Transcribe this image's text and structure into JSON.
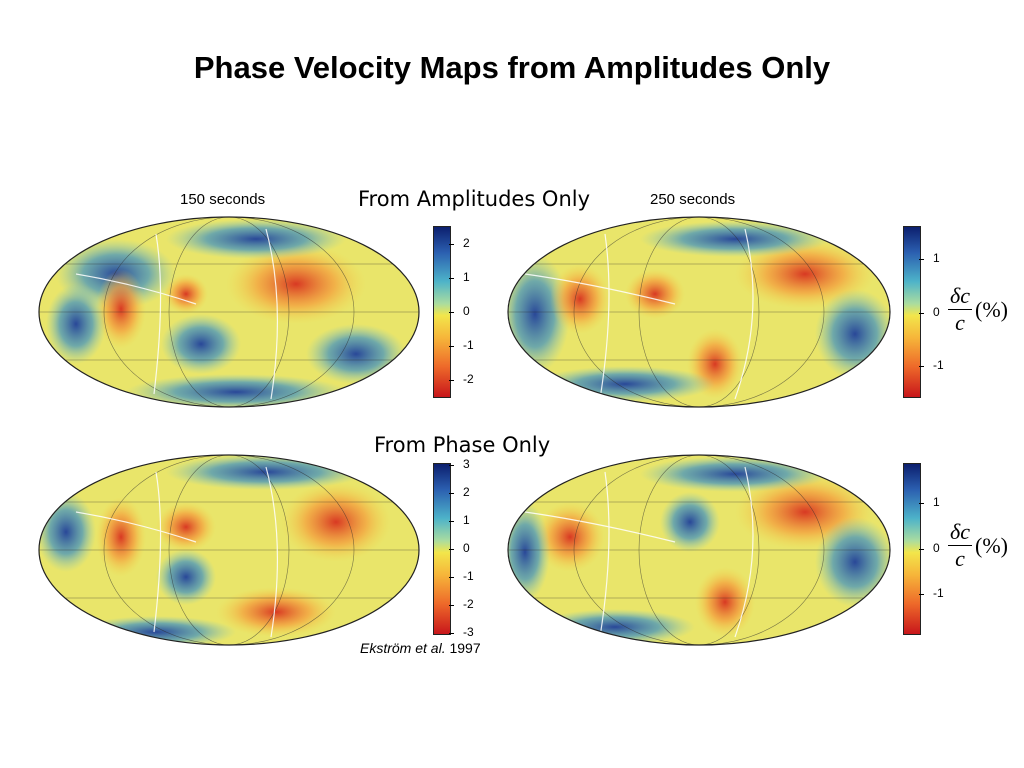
{
  "title": "Phase Velocity Maps from Amplitudes Only",
  "sections": {
    "amplitudes": "From Amplitudes Only",
    "phase": "From Phase Only"
  },
  "periods": {
    "left": "150 seconds",
    "right": "250 seconds"
  },
  "colorbars": {
    "amp_150": [
      "2",
      "1",
      "0",
      "-1",
      "-2"
    ],
    "amp_250": [
      "1",
      "0",
      "-1"
    ],
    "phase_150": [
      "3",
      "2",
      "1",
      "0",
      "-1",
      "-2",
      "-3"
    ],
    "phase_250": [
      "1",
      "0",
      "-1"
    ]
  },
  "unit_label": {
    "numerator": "δc",
    "denominator": "c",
    "suffix": "(%)"
  },
  "citation": {
    "authors": "Ekström et al.",
    "year": "1997"
  },
  "colors": {
    "slow": "#d7301f",
    "neutral": "#f2e64b",
    "fast": "#1f3f9a"
  }
}
